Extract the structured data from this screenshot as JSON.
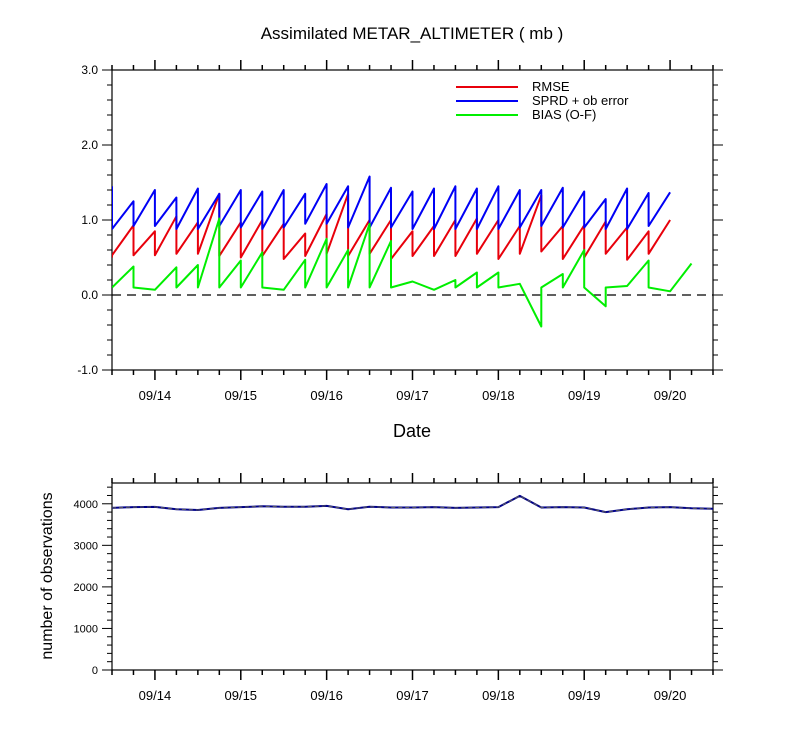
{
  "chart_data": [
    {
      "type": "line",
      "title": "Assimilated METAR_ALTIMETER ( mb )",
      "xlabel": "Date",
      "ylabel": "",
      "ylim": [
        -1.0,
        3.0
      ],
      "yticks": [
        "-1.0",
        "0.0",
        "1.0",
        "2.0",
        "3.0"
      ],
      "xlim": [
        "09/13 12:00",
        "09/20 12:00"
      ],
      "xtick_labels": [
        "09/14",
        "09/15",
        "09/16",
        "09/17",
        "09/18",
        "09/19",
        "09/20"
      ],
      "grid": false,
      "zero_line": "dashed",
      "legend": "top-right",
      "series": [
        {
          "name": "RMSE",
          "color": "#e8000b",
          "values": [
            [
              0.0,
              0.5
            ],
            [
              0.0,
              0.53
            ],
            [
              0.25,
              0.93
            ],
            [
              0.25,
              0.53
            ],
            [
              0.5,
              0.85
            ],
            [
              0.5,
              0.53
            ],
            [
              0.75,
              1.05
            ],
            [
              0.75,
              0.55
            ],
            [
              1.0,
              0.97
            ],
            [
              1.0,
              0.55
            ],
            [
              1.25,
              1.35
            ],
            [
              1.25,
              0.52
            ],
            [
              1.5,
              0.97
            ],
            [
              1.5,
              0.5
            ],
            [
              1.75,
              1.0
            ],
            [
              1.75,
              0.52
            ],
            [
              2.0,
              0.95
            ],
            [
              2.0,
              0.48
            ],
            [
              2.25,
              0.82
            ],
            [
              2.25,
              0.52
            ],
            [
              2.5,
              1.08
            ],
            [
              2.5,
              0.55
            ],
            [
              2.75,
              1.35
            ],
            [
              2.75,
              0.52
            ],
            [
              3.0,
              1.0
            ],
            [
              3.0,
              0.55
            ],
            [
              3.25,
              1.0
            ],
            [
              3.25,
              0.48
            ],
            [
              3.5,
              0.85
            ],
            [
              3.5,
              0.52
            ],
            [
              3.75,
              0.92
            ],
            [
              3.75,
              0.52
            ],
            [
              4.0,
              1.0
            ],
            [
              4.0,
              0.52
            ],
            [
              4.25,
              1.02
            ],
            [
              4.25,
              0.55
            ],
            [
              4.5,
              1.0
            ],
            [
              4.5,
              0.48
            ],
            [
              4.75,
              0.92
            ],
            [
              4.75,
              0.55
            ],
            [
              5.0,
              1.33
            ],
            [
              5.0,
              0.58
            ],
            [
              5.25,
              0.92
            ],
            [
              5.25,
              0.48
            ],
            [
              5.5,
              0.93
            ],
            [
              5.5,
              0.5
            ],
            [
              5.75,
              0.98
            ],
            [
              5.75,
              0.55
            ],
            [
              6.0,
              0.9
            ],
            [
              6.0,
              0.47
            ],
            [
              6.25,
              0.85
            ],
            [
              6.25,
              0.55
            ],
            [
              6.5,
              1.0
            ]
          ]
        },
        {
          "name": "SPRD + ob error",
          "color": "#0000f5",
          "values": [
            [
              0.0,
              1.45
            ],
            [
              0.0,
              0.88
            ],
            [
              0.25,
              1.25
            ],
            [
              0.25,
              0.92
            ],
            [
              0.5,
              1.4
            ],
            [
              0.5,
              0.92
            ],
            [
              0.75,
              1.3
            ],
            [
              0.75,
              0.88
            ],
            [
              1.0,
              1.42
            ],
            [
              1.0,
              0.88
            ],
            [
              1.25,
              1.35
            ],
            [
              1.25,
              0.92
            ],
            [
              1.5,
              1.4
            ],
            [
              1.5,
              0.9
            ],
            [
              1.75,
              1.38
            ],
            [
              1.75,
              0.88
            ],
            [
              2.0,
              1.4
            ],
            [
              2.0,
              0.9
            ],
            [
              2.25,
              1.35
            ],
            [
              2.25,
              0.95
            ],
            [
              2.5,
              1.48
            ],
            [
              2.5,
              0.95
            ],
            [
              2.75,
              1.45
            ],
            [
              2.75,
              0.9
            ],
            [
              3.0,
              1.58
            ],
            [
              3.0,
              0.9
            ],
            [
              3.25,
              1.43
            ],
            [
              3.25,
              0.9
            ],
            [
              3.5,
              1.38
            ],
            [
              3.5,
              0.88
            ],
            [
              3.75,
              1.42
            ],
            [
              3.75,
              0.88
            ],
            [
              4.0,
              1.45
            ],
            [
              4.0,
              0.88
            ],
            [
              4.25,
              1.42
            ],
            [
              4.25,
              0.88
            ],
            [
              4.5,
              1.45
            ],
            [
              4.5,
              0.88
            ],
            [
              4.75,
              1.4
            ],
            [
              4.75,
              0.9
            ],
            [
              5.0,
              1.4
            ],
            [
              5.0,
              0.92
            ],
            [
              5.25,
              1.43
            ],
            [
              5.25,
              0.9
            ],
            [
              5.5,
              1.38
            ],
            [
              5.5,
              0.9
            ],
            [
              5.75,
              1.28
            ],
            [
              5.75,
              0.88
            ],
            [
              6.0,
              1.42
            ],
            [
              6.0,
              0.88
            ],
            [
              6.25,
              1.36
            ],
            [
              6.25,
              0.92
            ],
            [
              6.5,
              1.37
            ]
          ]
        },
        {
          "name": "BIAS (O-F)",
          "color": "#00ee00",
          "values": [
            [
              0.0,
              0.1
            ],
            [
              0.25,
              0.38
            ],
            [
              0.25,
              0.1
            ],
            [
              0.5,
              0.07
            ],
            [
              0.75,
              0.37
            ],
            [
              0.75,
              0.1
            ],
            [
              1.0,
              0.4
            ],
            [
              1.0,
              0.1
            ],
            [
              1.25,
              1.02
            ],
            [
              1.25,
              0.1
            ],
            [
              1.5,
              0.46
            ],
            [
              1.5,
              0.1
            ],
            [
              1.75,
              0.57
            ],
            [
              1.75,
              0.1
            ],
            [
              2.0,
              0.07
            ],
            [
              2.25,
              0.47
            ],
            [
              2.25,
              0.1
            ],
            [
              2.5,
              0.75
            ],
            [
              2.5,
              0.1
            ],
            [
              2.75,
              0.6
            ],
            [
              2.75,
              0.1
            ],
            [
              3.0,
              0.95
            ],
            [
              3.0,
              0.1
            ],
            [
              3.25,
              0.72
            ],
            [
              3.25,
              0.1
            ],
            [
              3.5,
              0.18
            ],
            [
              3.75,
              0.07
            ],
            [
              4.0,
              0.2
            ],
            [
              4.0,
              0.1
            ],
            [
              4.25,
              0.3
            ],
            [
              4.25,
              0.1
            ],
            [
              4.5,
              0.3
            ],
            [
              4.5,
              0.1
            ],
            [
              4.75,
              0.15
            ],
            [
              5.0,
              -0.42
            ],
            [
              5.0,
              0.1
            ],
            [
              5.25,
              0.28
            ],
            [
              5.25,
              0.1
            ],
            [
              5.5,
              0.6
            ],
            [
              5.5,
              0.1
            ],
            [
              5.75,
              -0.15
            ],
            [
              5.75,
              0.1
            ],
            [
              6.0,
              0.12
            ],
            [
              6.25,
              0.46
            ],
            [
              6.25,
              0.1
            ],
            [
              6.5,
              0.05
            ],
            [
              6.75,
              0.42
            ]
          ]
        }
      ]
    },
    {
      "type": "line",
      "title": "",
      "xlabel": "",
      "ylabel": "number of observations",
      "ylim": [
        0,
        4500
      ],
      "yticks": [
        "0",
        "1000",
        "2000",
        "3000",
        "4000"
      ],
      "xlim": [
        "09/13 12:00",
        "09/20 12:00"
      ],
      "xtick_labels": [
        "09/14",
        "09/15",
        "09/16",
        "09/17",
        "09/18",
        "09/19",
        "09/20"
      ],
      "grid": false,
      "series": [
        {
          "color": "#00008b",
          "values": [
            [
              0.0,
              3900
            ],
            [
              0.25,
              3920
            ],
            [
              0.5,
              3925
            ],
            [
              0.75,
              3870
            ],
            [
              1.0,
              3850
            ],
            [
              1.25,
              3900
            ],
            [
              1.5,
              3920
            ],
            [
              1.75,
              3940
            ],
            [
              2.0,
              3930
            ],
            [
              2.25,
              3930
            ],
            [
              2.5,
              3950
            ],
            [
              2.75,
              3870
            ],
            [
              3.0,
              3930
            ],
            [
              3.25,
              3910
            ],
            [
              3.5,
              3910
            ],
            [
              3.75,
              3920
            ],
            [
              4.0,
              3900
            ],
            [
              4.25,
              3910
            ],
            [
              4.5,
              3920
            ],
            [
              4.75,
              4190
            ],
            [
              5.0,
              3910
            ],
            [
              5.25,
              3920
            ],
            [
              5.5,
              3910
            ],
            [
              5.75,
              3800
            ],
            [
              6.0,
              3870
            ],
            [
              6.25,
              3910
            ],
            [
              6.5,
              3920
            ],
            [
              6.75,
              3890
            ],
            [
              7.0,
              3880
            ]
          ]
        }
      ]
    }
  ]
}
